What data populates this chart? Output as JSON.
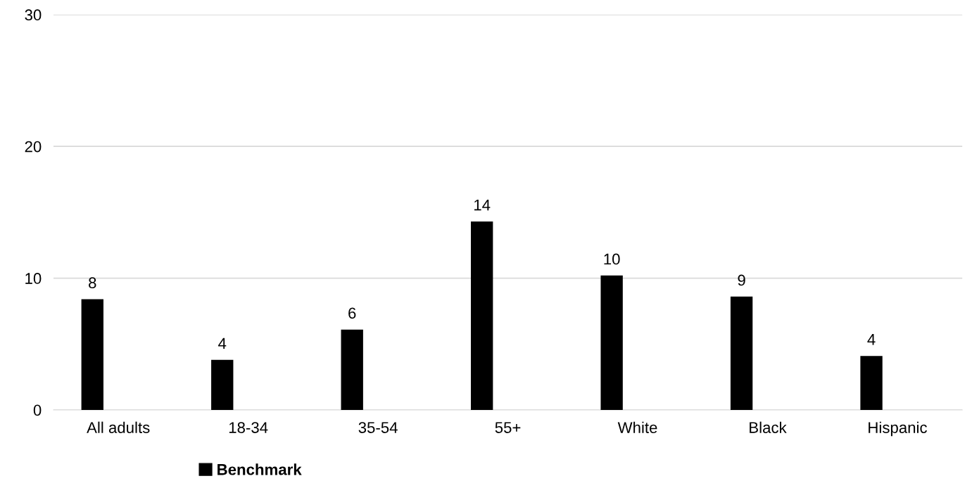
{
  "chart_data": {
    "type": "bar",
    "categories": [
      "All adults",
      "18-34",
      "35-54",
      "55+",
      "White",
      "Black",
      "Hispanic"
    ],
    "series": [
      {
        "name": "Benchmark",
        "color": "#000000",
        "values": [
          8.4,
          3.8,
          6.1,
          14.3,
          10.2,
          8.6,
          4.1
        ],
        "value_labels": [
          "8",
          "4",
          "6",
          "14",
          "10",
          "9",
          "4"
        ]
      }
    ],
    "ylim": [
      0,
      30
    ],
    "yticks": [
      0,
      10,
      20,
      30
    ],
    "grid": "y",
    "legend": "bottom"
  }
}
